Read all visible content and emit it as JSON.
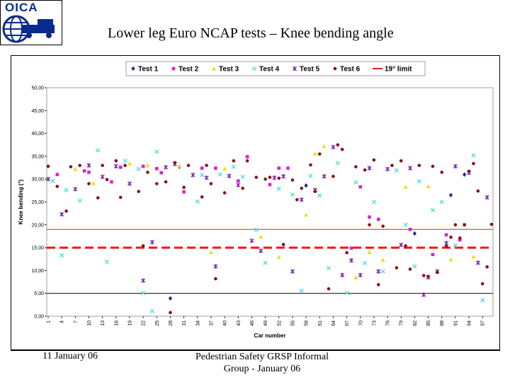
{
  "slide": {
    "title": "Lower leg Euro NCAP tests – Knee bending angle",
    "logo_text": "OICA",
    "footer_date": "11 January 06",
    "footer_line1": "Pedestrian Safety GRSP Informal",
    "footer_line2": "Group - January 06"
  },
  "chart_data": {
    "type": "scatter",
    "title": "",
    "xlabel": "Car number",
    "ylabel": "Knee bending (°)",
    "ylim": [
      0,
      50
    ],
    "yticks": [
      "0,00",
      "5,00",
      "10,00",
      "15,00",
      "20,00",
      "25,00",
      "30,00",
      "35,00",
      "40,00",
      "45,00",
      "50,00"
    ],
    "xlim": [
      1,
      99
    ],
    "xticks": [
      "1",
      "4",
      "7",
      "10",
      "13",
      "16",
      "19",
      "22",
      "25",
      "28",
      "31",
      "34",
      "37",
      "40",
      "43",
      "46",
      "49",
      "52",
      "55",
      "58",
      "61",
      "64",
      "67",
      "70",
      "73",
      "76",
      "79",
      "82",
      "85",
      "88",
      "91",
      "94",
      "97"
    ],
    "reference_lines": [
      {
        "name": "19° limit",
        "value": 19,
        "color": "#e02020",
        "style": "solid",
        "in_legend": true
      },
      {
        "name": "",
        "value": 15,
        "color": "#ff1010",
        "style": "dashed",
        "in_legend": false
      },
      {
        "name": "",
        "value": 5,
        "color": "#000000",
        "style": "solid",
        "in_legend": false
      }
    ],
    "series": [
      {
        "name": "Test 1",
        "color": "#1f2a8c",
        "marker": "diamond",
        "points": [
          [
            28,
            3.9
          ],
          [
            30,
            32.7
          ],
          [
            58,
            28.6
          ],
          [
            82,
            18.1
          ],
          [
            90,
            26.5
          ],
          [
            93,
            31.0
          ]
        ]
      },
      {
        "name": "Test 2",
        "color": "#e020c8",
        "marker": "square",
        "points": [
          [
            3,
            31.0
          ],
          [
            9,
            31.8
          ],
          [
            10,
            31.5
          ],
          [
            15,
            29.4
          ],
          [
            17,
            32.6
          ],
          [
            22,
            32.8
          ],
          [
            25,
            32.3
          ],
          [
            26,
            31.4
          ],
          [
            31,
            27.2
          ],
          [
            35,
            32.4
          ],
          [
            38,
            32.4
          ],
          [
            43,
            29.6
          ],
          [
            45,
            34.9
          ],
          [
            50,
            28.8
          ],
          [
            52,
            32.4
          ],
          [
            54,
            32.4
          ],
          [
            68,
            14.9
          ],
          [
            70,
            28.3
          ],
          [
            72,
            21.7
          ],
          [
            74,
            21.2
          ],
          [
            81,
            19.0
          ],
          [
            86,
            13.5
          ],
          [
            89,
            17.8
          ],
          [
            92,
            16.7
          ]
        ]
      },
      {
        "name": "Test 3",
        "color": "#e8e010",
        "marker": "triangle",
        "points": [
          [
            7,
            32.2
          ],
          [
            11,
            29.1
          ],
          [
            19,
            33.4
          ],
          [
            23,
            33.0
          ],
          [
            30,
            32.9
          ],
          [
            37,
            14.0
          ],
          [
            40,
            32.3
          ],
          [
            48,
            17.4
          ],
          [
            52,
            12.9
          ],
          [
            58,
            22.2
          ],
          [
            60,
            35.6
          ],
          [
            62,
            37.2
          ],
          [
            69,
            8.5
          ],
          [
            72,
            14.0
          ],
          [
            75,
            12.3
          ],
          [
            80,
            28.3
          ],
          [
            85,
            28.4
          ],
          [
            90,
            12.4
          ],
          [
            95,
            13.0
          ]
        ]
      },
      {
        "name": "Test 4",
        "color": "#40e0e0",
        "marker": "x",
        "points": [
          [
            2,
            29.6
          ],
          [
            4,
            13.3
          ],
          [
            5,
            27.6
          ],
          [
            8,
            25.3
          ],
          [
            12,
            36.3
          ],
          [
            14,
            11.9
          ],
          [
            18,
            34.0
          ],
          [
            21,
            32.2
          ],
          [
            22,
            5.1
          ],
          [
            24,
            1.1
          ],
          [
            25,
            36.0
          ],
          [
            34,
            25.1
          ],
          [
            35,
            30.9
          ],
          [
            39,
            31.0
          ],
          [
            42,
            32.7
          ],
          [
            44,
            30.5
          ],
          [
            47,
            18.9
          ],
          [
            49,
            11.7
          ],
          [
            52,
            27.9
          ],
          [
            55,
            26.6
          ],
          [
            57,
            5.6
          ],
          [
            59,
            30.7
          ],
          [
            61,
            26.4
          ],
          [
            63,
            10.5
          ],
          [
            65,
            33.5
          ],
          [
            67,
            5.1
          ],
          [
            69,
            29.3
          ],
          [
            71,
            11.6
          ],
          [
            73,
            25.0
          ],
          [
            75,
            9.8
          ],
          [
            78,
            31.9
          ],
          [
            80,
            20.0
          ],
          [
            82,
            10.9
          ],
          [
            83,
            29.5
          ],
          [
            86,
            23.2
          ],
          [
            88,
            25.0
          ],
          [
            91,
            15.5
          ],
          [
            93,
            20.0
          ],
          [
            95,
            35.2
          ],
          [
            97,
            3.5
          ]
        ]
      },
      {
        "name": "Test 5",
        "color": "#7020a8",
        "marker": "star",
        "points": [
          [
            1,
            30.0
          ],
          [
            4,
            22.3
          ],
          [
            7,
            27.8
          ],
          [
            10,
            33.0
          ],
          [
            13,
            30.5
          ],
          [
            16,
            32.8
          ],
          [
            19,
            29.0
          ],
          [
            22,
            7.8
          ],
          [
            24,
            16.2
          ],
          [
            27,
            32.6
          ],
          [
            29,
            33.3
          ],
          [
            33,
            30.9
          ],
          [
            36,
            30.3
          ],
          [
            38,
            10.9
          ],
          [
            41,
            30.7
          ],
          [
            43,
            28.7
          ],
          [
            46,
            16.5
          ],
          [
            48,
            14.3
          ],
          [
            51,
            30.3
          ],
          [
            53,
            30.6
          ],
          [
            55,
            9.8
          ],
          [
            57,
            25.5
          ],
          [
            60,
            27.6
          ],
          [
            62,
            30.6
          ],
          [
            64,
            37.0
          ],
          [
            66,
            9.0
          ],
          [
            68,
            12.2
          ],
          [
            70,
            9.0
          ],
          [
            72,
            32.4
          ],
          [
            74,
            9.8
          ],
          [
            76,
            32.2
          ],
          [
            79,
            15.6
          ],
          [
            81,
            32.4
          ],
          [
            84,
            4.7
          ],
          [
            85,
            8.5
          ],
          [
            87,
            9.8
          ],
          [
            89,
            16.0
          ],
          [
            91,
            32.8
          ],
          [
            94,
            31.4
          ],
          [
            96,
            11.7
          ],
          [
            98,
            26.0
          ]
        ]
      },
      {
        "name": "Test 6",
        "color": "#8a1020",
        "marker": "circle",
        "points": [
          [
            1,
            32.8
          ],
          [
            3,
            28.4
          ],
          [
            5,
            23.0
          ],
          [
            6,
            32.7
          ],
          [
            8,
            33.0
          ],
          [
            10,
            29.0
          ],
          [
            12,
            25.9
          ],
          [
            13,
            33.0
          ],
          [
            14,
            29.9
          ],
          [
            16,
            34.0
          ],
          [
            17,
            26.0
          ],
          [
            18,
            33.0
          ],
          [
            21,
            27.3
          ],
          [
            22,
            15.4
          ],
          [
            23,
            31.5
          ],
          [
            25,
            29.0
          ],
          [
            27,
            29.4
          ],
          [
            28,
            0.8
          ],
          [
            29,
            33.6
          ],
          [
            31,
            28.2
          ],
          [
            32,
            33.0
          ],
          [
            35,
            26.1
          ],
          [
            36,
            33.0
          ],
          [
            37,
            29.0
          ],
          [
            38,
            8.2
          ],
          [
            40,
            27.0
          ],
          [
            42,
            34.0
          ],
          [
            44,
            28.0
          ],
          [
            45,
            34.0
          ],
          [
            47,
            30.4
          ],
          [
            49,
            30.0
          ],
          [
            50,
            30.4
          ],
          [
            52,
            30.2
          ],
          [
            53,
            15.7
          ],
          [
            55,
            29.8
          ],
          [
            56,
            25.5
          ],
          [
            57,
            28.0
          ],
          [
            59,
            33.1
          ],
          [
            60,
            27.3
          ],
          [
            61,
            35.5
          ],
          [
            63,
            6.0
          ],
          [
            64,
            30.6
          ],
          [
            65,
            37.5
          ],
          [
            66,
            36.5
          ],
          [
            67,
            13.9
          ],
          [
            69,
            32.7
          ],
          [
            71,
            32.0
          ],
          [
            72,
            20.0
          ],
          [
            73,
            34.2
          ],
          [
            74,
            6.9
          ],
          [
            75,
            19.7
          ],
          [
            77,
            33.0
          ],
          [
            78,
            10.6
          ],
          [
            79,
            34.0
          ],
          [
            80,
            15.4
          ],
          [
            81,
            10.3
          ],
          [
            83,
            33.0
          ],
          [
            84,
            8.9
          ],
          [
            85,
            8.7
          ],
          [
            86,
            32.8
          ],
          [
            87,
            9.6
          ],
          [
            88,
            31.5
          ],
          [
            89,
            15.3
          ],
          [
            90,
            17.3
          ],
          [
            91,
            20.0
          ],
          [
            92,
            17.1
          ],
          [
            93,
            20.0
          ],
          [
            94,
            31.7
          ],
          [
            95,
            33.4
          ],
          [
            96,
            27.4
          ],
          [
            97,
            7.1
          ],
          [
            98,
            10.8
          ],
          [
            99,
            20.1
          ]
        ]
      }
    ]
  }
}
